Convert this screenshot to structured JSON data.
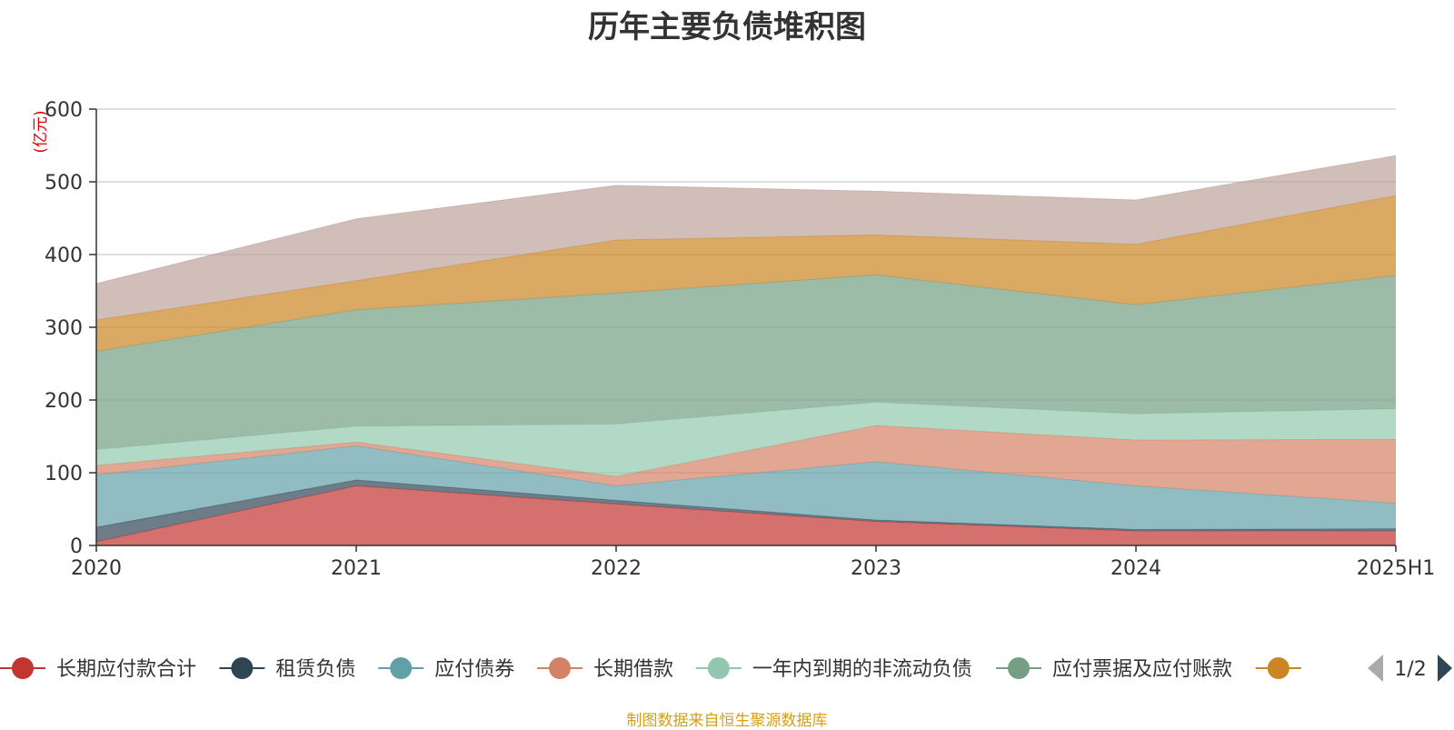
{
  "chart_data": {
    "type": "area",
    "stacked": true,
    "title": "历年主要负债堆积图",
    "y_unit": "(亿元)",
    "x": [
      "2020",
      "2021",
      "2022",
      "2023",
      "2024",
      "2025H1"
    ],
    "ylim": [
      0,
      600
    ],
    "yticks": [
      0,
      100,
      200,
      300,
      400,
      500,
      600
    ],
    "grid": true,
    "series": [
      {
        "name": "长期应付款合计",
        "color": "#c23531",
        "values": [
          5,
          82,
          57,
          33,
          20,
          20
        ]
      },
      {
        "name": "租赁负债",
        "color": "#2f4554",
        "values": [
          20,
          8,
          5,
          2,
          2,
          3
        ]
      },
      {
        "name": "应付债券",
        "color": "#61a0a8",
        "values": [
          72,
          47,
          20,
          80,
          60,
          35
        ]
      },
      {
        "name": "长期借款",
        "color": "#d48265",
        "values": [
          13,
          5,
          13,
          50,
          63,
          88
        ]
      },
      {
        "name": "一年内到期的非流动负债",
        "color": "#91c7ae",
        "values": [
          22,
          22,
          72,
          32,
          36,
          42
        ]
      },
      {
        "name": "应付票据及应付账款",
        "color": "#749f83",
        "values": [
          135,
          160,
          180,
          175,
          150,
          183
        ]
      },
      {
        "name": "",
        "color": "#ca8622",
        "values": [
          43,
          40,
          73,
          55,
          83,
          110
        ]
      },
      {
        "name": "",
        "color": "#bda29a",
        "values": [
          50,
          85,
          75,
          60,
          61,
          55
        ]
      }
    ],
    "legend": {
      "position": "bottom",
      "page": "1/2"
    }
  },
  "footer": {
    "text": "制图数据来自恒生聚源数据库",
    "color": "#d4a017"
  }
}
